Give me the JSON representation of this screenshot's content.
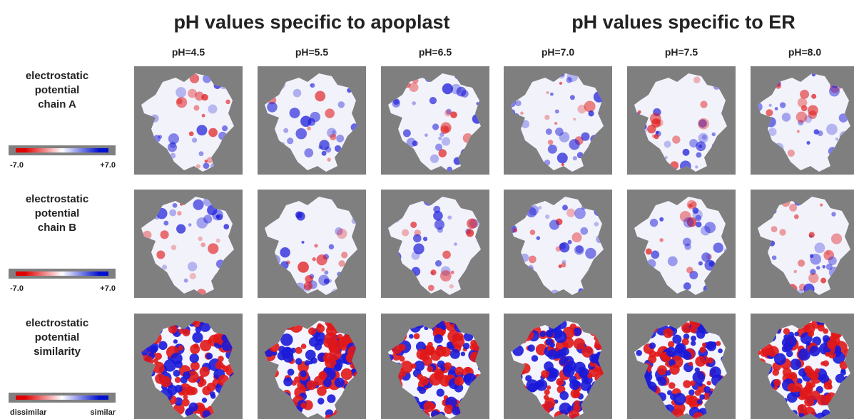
{
  "groups": [
    "pH values specific to apoplast",
    "pH values specific to ER"
  ],
  "columns": [
    "pH=4.5",
    "pH=5.5",
    "pH=6.5",
    "pH=7.0",
    "pH=7.5",
    "pH=8.0"
  ],
  "rows": [
    {
      "label": [
        "electrostatic",
        "potential",
        "chain A"
      ],
      "scale": [
        "-7.0",
        "+7.0"
      ]
    },
    {
      "label": [
        "electrostatic",
        "potential",
        "chain B"
      ],
      "scale": [
        "-7.0",
        "+7.0"
      ]
    },
    {
      "label": [
        "electrostatic",
        "potential",
        "similarity"
      ],
      "scale": [
        "dissimilar",
        "similar"
      ]
    }
  ]
}
